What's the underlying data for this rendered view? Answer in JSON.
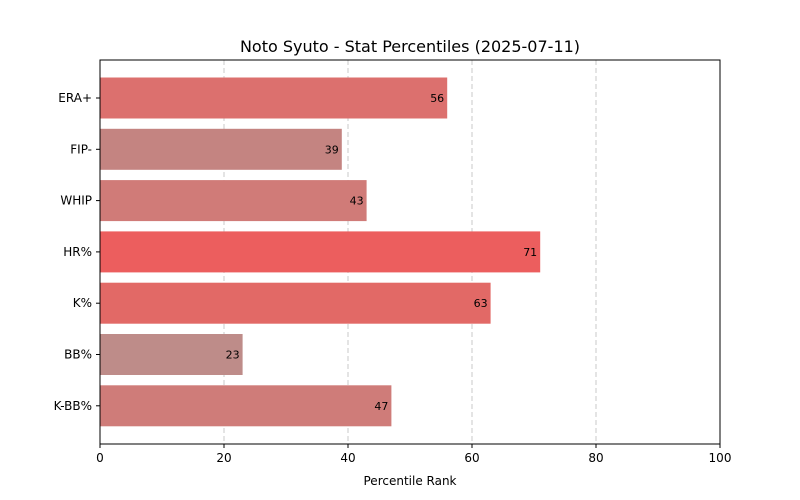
{
  "chart_data": {
    "type": "bar",
    "orientation": "horizontal",
    "title": "Noto Syuto - Stat Percentiles (2025-07-11)",
    "xlabel": "Percentile Rank",
    "ylabel": "",
    "xlim": [
      0,
      100
    ],
    "xticks": [
      0,
      20,
      40,
      60,
      80,
      100
    ],
    "grid": "vertical-dashed",
    "categories": [
      "ERA+",
      "FIP-",
      "WHIP",
      "HR%",
      "K%",
      "BB%",
      "K-BB%"
    ],
    "values": [
      56,
      39,
      43,
      71,
      63,
      23,
      47
    ],
    "colors": [
      "#dc706e",
      "#c48481",
      "#d07b78",
      "#ec5e5e",
      "#e26966",
      "#be8c89",
      "#cf7c79"
    ]
  }
}
